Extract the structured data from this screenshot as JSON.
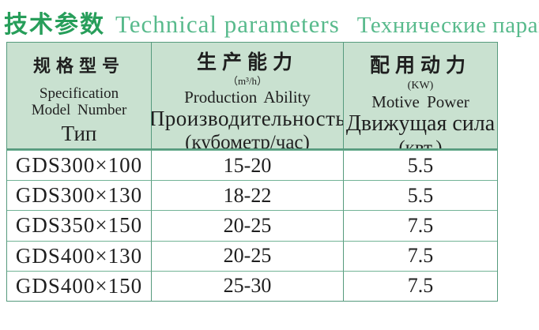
{
  "title": {
    "zh": "技术参数",
    "en": "Technical parameters",
    "ru": "Технические параметры"
  },
  "colors": {
    "title_zh_green": "#279e5a",
    "title_latin_green": "#58ba8c",
    "header_bg": "#c9e1d0",
    "border_green": "#569a7d",
    "row_line_green": "#72b396",
    "text": "#1f1f1f"
  },
  "table": {
    "header": {
      "col1": {
        "zh": "规格型号",
        "en_line1": "Specification",
        "en_line2": "Model Number",
        "ru": "Тип"
      },
      "col2": {
        "zh": "生产能力",
        "unit": "（m³/h）",
        "en": "Production Ability",
        "ru_line1": "Производительность",
        "ru_line2": "(кубометр/час)"
      },
      "col3": {
        "zh": "配用动力",
        "unit": "(KW)",
        "en": "Motive Power",
        "ru_line1": "Движущая сила",
        "ru_line2": "(квт.)"
      }
    },
    "rows": [
      {
        "model": "GDS300×100",
        "capacity": "15-20",
        "power": "5.5"
      },
      {
        "model": "GDS300×130",
        "capacity": "18-22",
        "power": "5.5"
      },
      {
        "model": "GDS350×150",
        "capacity": "20-25",
        "power": "7.5"
      },
      {
        "model": "GDS400×130",
        "capacity": "20-25",
        "power": "7.5"
      },
      {
        "model": "GDS400×150",
        "capacity": "25-30",
        "power": "7.5"
      }
    ]
  }
}
